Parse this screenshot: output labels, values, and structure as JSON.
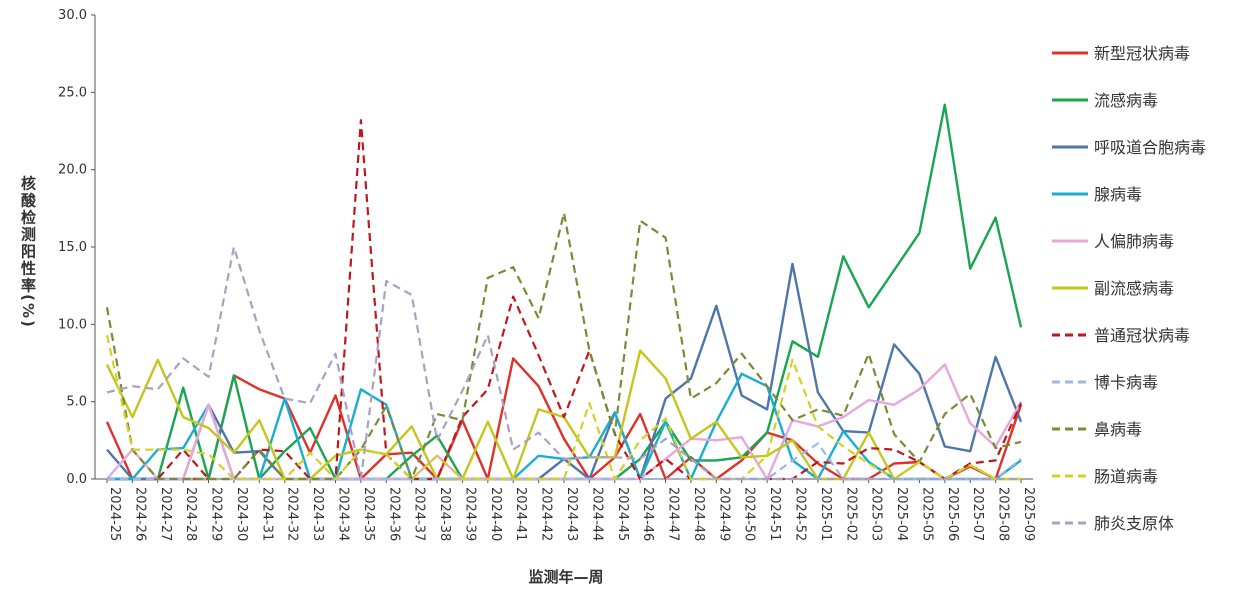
{
  "chart_data": {
    "type": "line",
    "title": "",
    "xlabel": "监测年—周",
    "ylabel": "核酸检测阳性率(%)",
    "ylim": [
      0,
      30
    ],
    "yticks": [
      "0.0",
      "5.0",
      "10.0",
      "15.0",
      "20.0",
      "25.0",
      "30.0"
    ],
    "grid": false,
    "legend_position": "right",
    "categories": [
      "2024-25",
      "2024-26",
      "2024-27",
      "2024-28",
      "2024-29",
      "2024-30",
      "2024-31",
      "2024-32",
      "2024-33",
      "2024-34",
      "2024-35",
      "2024-36",
      "2024-37",
      "2024-38",
      "2024-39",
      "2024-40",
      "2024-41",
      "2024-42",
      "2024-43",
      "2024-44",
      "2024-45",
      "2024-46",
      "2024-47",
      "2024-48",
      "2024-49",
      "2024-50",
      "2024-51",
      "2024-52",
      "2025-01",
      "2025-02",
      "2025-03",
      "2025-04",
      "2025-05",
      "2025-06",
      "2025-07",
      "2025-08",
      "2025-09"
    ],
    "series": [
      {
        "name": "新型冠状病毒",
        "color": "#e0302a",
        "dash": false,
        "values": [
          3.7,
          0.0,
          0.0,
          0.0,
          0.0,
          6.7,
          5.8,
          5.2,
          1.7,
          5.4,
          0.0,
          1.6,
          1.7,
          0.0,
          3.8,
          0.0,
          7.8,
          6.0,
          2.6,
          0.0,
          1.4,
          4.2,
          0.0,
          1.4,
          0.0,
          1.2,
          3.0,
          2.5,
          1.0,
          0.0,
          0.0,
          1.0,
          1.1,
          0.0,
          0.8,
          0.0,
          4.8
        ]
      },
      {
        "name": "流感病毒",
        "color": "#1aa550",
        "dash": false,
        "values": [
          0.0,
          0.0,
          0.0,
          5.9,
          0.0,
          6.7,
          0.0,
          1.8,
          3.3,
          0.0,
          0.0,
          0.0,
          1.5,
          2.8,
          0.0,
          0.0,
          0.0,
          0.0,
          0.0,
          0.0,
          0.0,
          1.3,
          3.7,
          1.2,
          1.2,
          1.4,
          3.0,
          8.9,
          7.9,
          14.4,
          11.1,
          13.5,
          15.9,
          24.2,
          13.6,
          16.9,
          9.8
        ]
      },
      {
        "name": "呼吸道合胞病毒",
        "color": "#4f76a8",
        "dash": false,
        "values": [
          1.9,
          0.0,
          0.0,
          0.0,
          4.8,
          1.7,
          1.8,
          0.0,
          0.0,
          0.0,
          0.0,
          0.0,
          0.0,
          0.0,
          0.0,
          0.0,
          0.0,
          0.0,
          1.3,
          0.0,
          4.3,
          0.0,
          5.2,
          6.5,
          11.2,
          5.4,
          4.5,
          13.9,
          5.6,
          3.1,
          3.0,
          8.7,
          6.8,
          2.1,
          1.8,
          7.9,
          3.7
        ]
      },
      {
        "name": "腺病毒",
        "color": "#18aed1",
        "dash": false,
        "values": [
          0.0,
          0.0,
          1.9,
          2.0,
          4.8,
          0.0,
          0.0,
          5.2,
          0.0,
          0.0,
          5.8,
          4.8,
          0.0,
          0.0,
          0.0,
          0.0,
          0.0,
          1.5,
          1.3,
          1.4,
          4.3,
          0.0,
          3.7,
          0.0,
          3.7,
          6.8,
          6.0,
          1.2,
          0.0,
          3.1,
          1.1,
          0.0,
          0.0,
          0.0,
          0.0,
          0.0,
          1.2
        ]
      },
      {
        "name": "人偏肺病毒",
        "color": "#e7a7dd",
        "dash": false,
        "values": [
          0.0,
          1.9,
          0.0,
          0.0,
          4.8,
          0.0,
          0.0,
          0.0,
          0.0,
          0.0,
          0.0,
          0.0,
          0.0,
          1.5,
          0.0,
          0.0,
          0.0,
          0.0,
          0.0,
          0.0,
          0.0,
          0.0,
          1.3,
          2.6,
          2.5,
          2.7,
          0.0,
          3.8,
          3.4,
          4.0,
          5.1,
          4.8,
          5.8,
          7.4,
          3.6,
          2.1,
          5.0
        ]
      },
      {
        "name": "副流感病毒",
        "color": "#c5c51c",
        "dash": false,
        "values": [
          7.4,
          4.0,
          7.7,
          4.0,
          3.3,
          1.7,
          3.8,
          0.0,
          0.0,
          1.5,
          1.9,
          1.6,
          3.4,
          0.0,
          0.0,
          3.7,
          0.0,
          4.5,
          4.0,
          1.4,
          1.4,
          8.3,
          6.5,
          2.6,
          3.7,
          1.4,
          1.5,
          2.5,
          0.0,
          0.0,
          3.0,
          0.0,
          1.1,
          0.0,
          0.9,
          0.0,
          0.0
        ]
      },
      {
        "name": "普通冠状病毒",
        "color": "#c0171c",
        "dash": true,
        "values": [
          0.0,
          0.0,
          0.0,
          1.9,
          0.0,
          0.0,
          1.9,
          1.8,
          0.0,
          0.0,
          23.2,
          1.6,
          0.0,
          0.0,
          4.0,
          5.8,
          11.8,
          8.0,
          4.0,
          8.3,
          2.9,
          0.0,
          1.3,
          0.0,
          0.0,
          0.0,
          0.0,
          0.0,
          1.1,
          1.0,
          2.0,
          1.9,
          1.1,
          0.0,
          1.0,
          1.2,
          4.9
        ]
      },
      {
        "name": "博卡病毒",
        "color": "#9ab9e0",
        "dash": true,
        "values": [
          0.0,
          0.0,
          0.0,
          0.0,
          0.0,
          0.0,
          0.0,
          0.0,
          0.0,
          0.0,
          0.0,
          0.0,
          0.0,
          0.0,
          0.0,
          0.0,
          0.0,
          0.0,
          0.0,
          0.0,
          0.0,
          0.0,
          0.0,
          0.0,
          0.0,
          0.0,
          0.0,
          1.2,
          2.3,
          0.0,
          0.0,
          0.0,
          0.0,
          0.0,
          0.0,
          0.0,
          1.3
        ]
      },
      {
        "name": "鼻病毒",
        "color": "#7a8a36",
        "dash": true,
        "values": [
          11.1,
          1.9,
          0.0,
          0.0,
          0.0,
          0.0,
          1.9,
          0.0,
          0.0,
          0.0,
          1.9,
          4.7,
          0.0,
          4.2,
          3.8,
          13.0,
          13.7,
          10.4,
          17.2,
          8.3,
          2.9,
          16.7,
          15.6,
          5.2,
          6.2,
          8.1,
          6.0,
          3.8,
          4.5,
          4.1,
          8.1,
          2.9,
          1.1,
          4.2,
          5.5,
          2.0,
          2.4
        ]
      },
      {
        "name": "肠道病毒",
        "color": "#d4d027",
        "dash": true,
        "values": [
          9.3,
          1.9,
          1.9,
          1.9,
          1.6,
          0.0,
          0.0,
          0.0,
          1.7,
          0.0,
          1.9,
          1.6,
          0.0,
          1.5,
          0.0,
          0.0,
          0.0,
          0.0,
          0.0,
          4.9,
          0.0,
          2.5,
          3.9,
          0.0,
          0.0,
          0.0,
          1.5,
          7.7,
          3.4,
          2.1,
          1.0,
          0.0,
          1.1,
          0.0,
          0.9,
          0.0,
          0.0
        ]
      },
      {
        "name": "肺炎支原体",
        "color": "#a9a1c2",
        "dash": true,
        "values": [
          5.6,
          6.0,
          5.8,
          7.8,
          6.6,
          15.0,
          9.6,
          5.2,
          4.9,
          8.1,
          0.0,
          12.8,
          11.9,
          2.5,
          5.7,
          9.3,
          1.9,
          3.0,
          1.3,
          1.4,
          1.4,
          1.3,
          2.6,
          1.3,
          0.0,
          0.0,
          0.0,
          0.0,
          0.0,
          0.0,
          0.0,
          0.0,
          0.0,
          0.0,
          0.0,
          0.0,
          0.0
        ]
      }
    ]
  }
}
